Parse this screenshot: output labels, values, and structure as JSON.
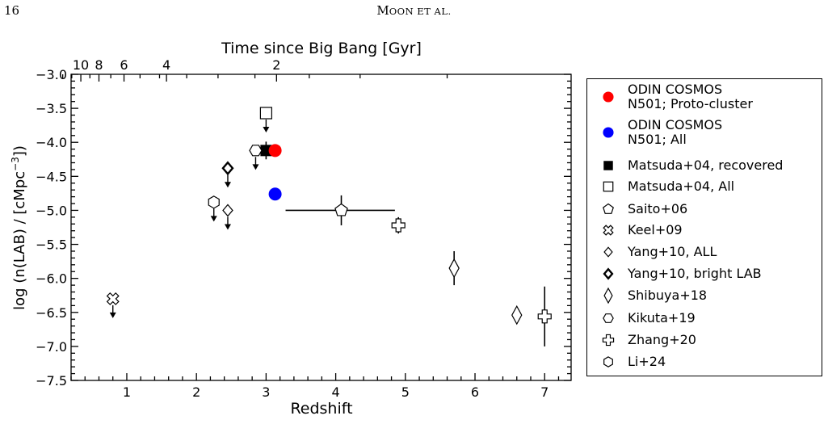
{
  "page": {
    "number": "16",
    "header_first": "M",
    "header_rest": "OON ET AL."
  },
  "chart_data": {
    "type": "scatter",
    "xlabel": "Redshift",
    "ylabel": "log (n(LAB) / [cMpc",
    "ylabel_sup": "−3",
    "ylabel_end": "])",
    "top_xlabel": "Time since Big Bang [Gyr]",
    "xlim": [
      0.2,
      7.38
    ],
    "ylim": [
      -7.5,
      -3.0
    ],
    "x_ticks": [
      1,
      2,
      3,
      4,
      5,
      6,
      7
    ],
    "x_tick_labels": [
      "1",
      "2",
      "3",
      "4",
      "5",
      "6",
      "7"
    ],
    "y_ticks": [
      -7.5,
      -7.0,
      -6.5,
      -6.0,
      -5.5,
      -5.0,
      -4.5,
      -4.0,
      -3.5,
      -3.0
    ],
    "y_tick_labels": [
      "−7.5",
      "−7.0",
      "−6.5",
      "−6.0",
      "−5.5",
      "−5.0",
      "−4.5",
      "−4.0",
      "−3.5",
      "−3.0"
    ],
    "top_ticks": [
      {
        "gyr": 10,
        "z": 0.34,
        "label": "10"
      },
      {
        "gyr": 8,
        "z": 0.6,
        "label": "8"
      },
      {
        "gyr": 6,
        "z": 0.96,
        "label": "6"
      },
      {
        "gyr": 4,
        "z": 1.57,
        "label": "4"
      },
      {
        "gyr": 2,
        "z": 3.15,
        "label": "2"
      }
    ],
    "top_minor_z": [
      0.08,
      0.21,
      0.47,
      0.77,
      1.19,
      1.47,
      1.86,
      2.31,
      2.84,
      3.62,
      4.35,
      5.6
    ],
    "series": [
      {
        "name": "ODIN COSMOS\nN501; Proto-cluster",
        "marker": "circle",
        "color": "#ff0000",
        "points": [
          {
            "x": 3.13,
            "y": -4.12
          }
        ]
      },
      {
        "name": "ODIN COSMOS\nN501; All",
        "marker": "circle",
        "color": "#0000ff",
        "points": [
          {
            "x": 3.13,
            "y": -4.76
          }
        ]
      },
      {
        "name": "Matsuda+04, recovered",
        "marker": "square-filled",
        "color": "#000000",
        "points": [
          {
            "x": 3.0,
            "y": -4.12,
            "yerr": 0.13
          }
        ]
      },
      {
        "name": "Matsuda+04, All",
        "marker": "square-open",
        "color": "#000000",
        "points": [
          {
            "x": 3.0,
            "y": -3.57,
            "upper_limit": true
          }
        ]
      },
      {
        "name": "Saito+06",
        "marker": "pentagon",
        "color": "#000000",
        "points": [
          {
            "x": 4.08,
            "y": -5.0,
            "xerr": [
              0.8,
              0.77
            ],
            "yerr": 0.22
          }
        ]
      },
      {
        "name": "Keel+09",
        "marker": "x-shape",
        "color": "#000000",
        "points": [
          {
            "x": 0.8,
            "y": -6.3,
            "upper_limit": true
          }
        ]
      },
      {
        "name": "Yang+10, ALL",
        "marker": "diamond-small",
        "color": "#000000",
        "points": [
          {
            "x": 2.45,
            "y": -5.0,
            "upper_limit": true
          }
        ]
      },
      {
        "name": "Yang+10, bright LAB",
        "marker": "diamond-bold",
        "color": "#000000",
        "points": [
          {
            "x": 2.45,
            "y": -4.38,
            "upper_limit": true
          }
        ]
      },
      {
        "name": "Shibuya+18",
        "marker": "thin-diamond",
        "color": "#000000",
        "points": [
          {
            "x": 5.7,
            "y": -5.85,
            "yerr": 0.25
          },
          {
            "x": 6.6,
            "y": -6.54
          }
        ]
      },
      {
        "name": "Kikuta+19",
        "marker": "hexagon-flat",
        "color": "#000000",
        "points": [
          {
            "x": 2.85,
            "y": -4.12,
            "upper_limit": true
          }
        ]
      },
      {
        "name": "Zhang+20",
        "marker": "plus-shape",
        "color": "#000000",
        "points": [
          {
            "x": 4.9,
            "y": -5.22,
            "yerr": 0.12
          },
          {
            "x": 7.0,
            "y": -6.56,
            "yerr": 0.44
          }
        ]
      },
      {
        "name": "Li+24",
        "marker": "hexagon-pointy",
        "color": "#000000",
        "points": [
          {
            "x": 2.25,
            "y": -4.88,
            "upper_limit": true
          }
        ]
      }
    ]
  }
}
